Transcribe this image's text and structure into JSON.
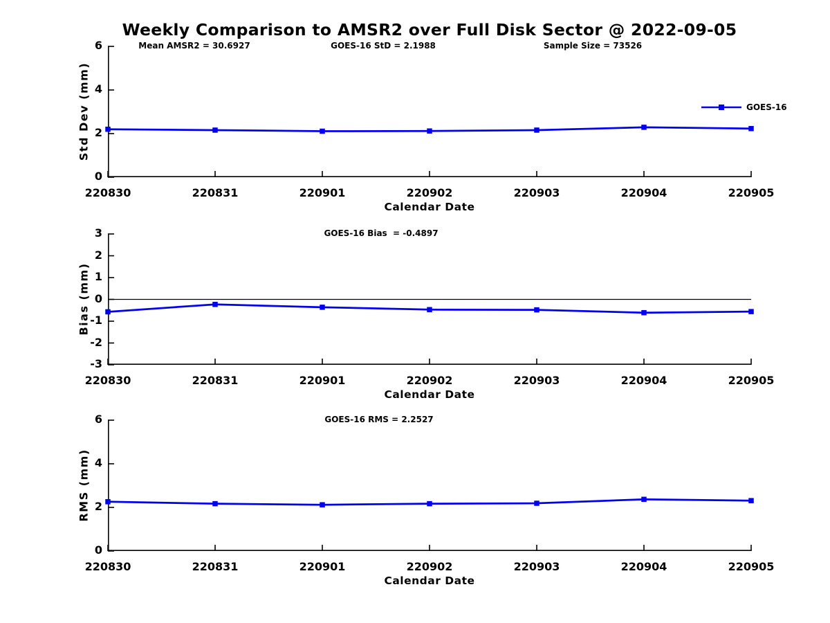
{
  "title": "Weekly Comparison to AMSR2 over Full Disk Sector @ 2022-09-05",
  "legend": {
    "label": "GOES-16"
  },
  "colors": {
    "line": "#0000ee",
    "axis": "#000000"
  },
  "chart_data": [
    {
      "type": "line",
      "title": "",
      "annotations": [
        "Mean AMSR2 = 30.6927",
        "GOES-16 StD = 2.1988",
        "Sample Size = 73526"
      ],
      "categories": [
        "220830",
        "220831",
        "220901",
        "220902",
        "220903",
        "220904",
        "220905"
      ],
      "series": [
        {
          "name": "GOES-16",
          "values": [
            2.2,
            2.16,
            2.11,
            2.12,
            2.16,
            2.29,
            2.23
          ]
        }
      ],
      "xlabel": "Calendar Date",
      "ylabel": "Std Dev (mm)",
      "ylim": [
        0,
        6
      ],
      "yticks": [
        0,
        2,
        4,
        6
      ],
      "zero_line": false,
      "grid": false,
      "legend_position": "top-right",
      "marker": "square"
    },
    {
      "type": "line",
      "title": "GOES-16 Bias  = -0.4897",
      "annotations": [],
      "categories": [
        "220830",
        "220831",
        "220901",
        "220902",
        "220903",
        "220904",
        "220905"
      ],
      "series": [
        {
          "name": "GOES-16",
          "values": [
            -0.57,
            -0.23,
            -0.36,
            -0.47,
            -0.48,
            -0.61,
            -0.56
          ]
        }
      ],
      "xlabel": "Calendar Date",
      "ylabel": "Bias (mm)",
      "ylim": [
        -3,
        3
      ],
      "yticks": [
        3,
        2,
        1,
        0,
        -1,
        -2,
        -3
      ],
      "zero_line": true,
      "grid": false,
      "legend_position": "none",
      "marker": "square"
    },
    {
      "type": "line",
      "title": "GOES-16 RMS = 2.2527",
      "annotations": [],
      "categories": [
        "220830",
        "220831",
        "220901",
        "220902",
        "220903",
        "220904",
        "220905"
      ],
      "series": [
        {
          "name": "GOES-16",
          "values": [
            2.26,
            2.17,
            2.12,
            2.17,
            2.19,
            2.37,
            2.31
          ]
        }
      ],
      "xlabel": "Calendar Date",
      "ylabel": "RMS (mm)",
      "ylim": [
        0,
        6
      ],
      "yticks": [
        0,
        2,
        4,
        6
      ],
      "zero_line": false,
      "grid": false,
      "legend_position": "none",
      "marker": "square"
    }
  ]
}
